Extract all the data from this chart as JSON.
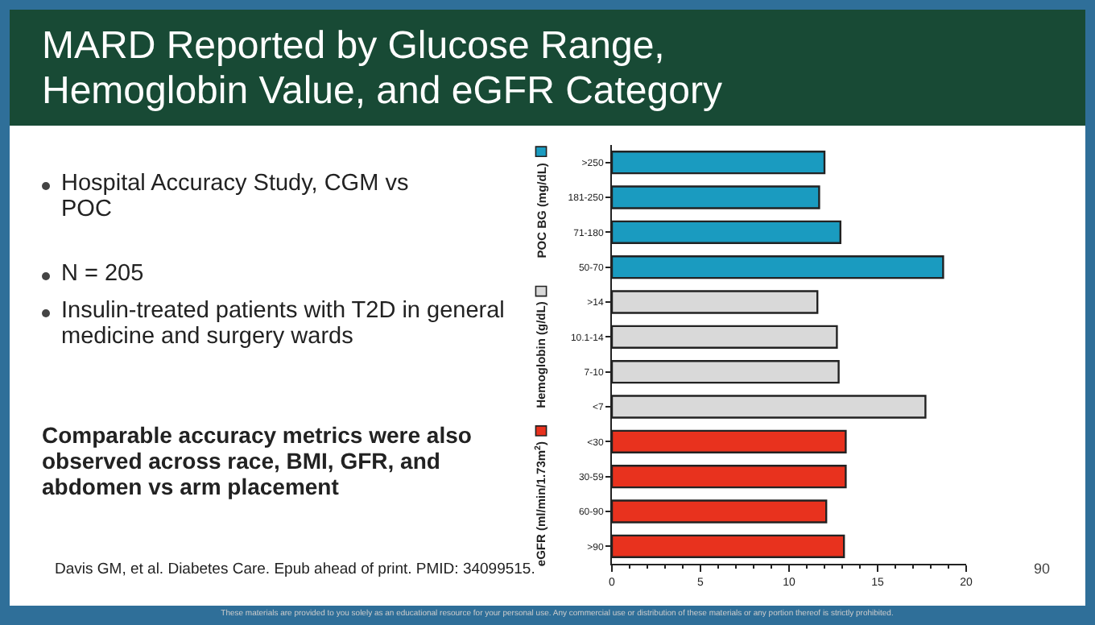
{
  "chart_data": {
    "type": "bar",
    "orientation": "horizontal",
    "title": "MARD Reported by Glucose Range, Hemoglobin Value, and eGFR Category",
    "categories": [
      ">250",
      "181-250",
      "71-180",
      "50-70",
      ">14",
      "10.1-14",
      "7-10",
      "<7",
      "<30",
      "30-59",
      "60-90",
      ">90"
    ],
    "series": [
      {
        "name": "POC BG (mg/dL)",
        "color": "#1a9bc0",
        "values": [
          12.0,
          11.7,
          12.9,
          18.7,
          null,
          null,
          null,
          null,
          null,
          null,
          null,
          null
        ]
      },
      {
        "name": "Hemoglobin (g/dL)",
        "color": "#d9d9d9",
        "values": [
          null,
          null,
          null,
          null,
          11.6,
          12.7,
          12.8,
          17.7,
          null,
          null,
          null,
          null
        ]
      },
      {
        "name": "eGFR (ml/min/1.73m$^{2}$)",
        "color": "#e8321e",
        "values": [
          null,
          null,
          null,
          null,
          null,
          null,
          null,
          null,
          13.2,
          13.2,
          12.1,
          13.1
        ]
      }
    ],
    "xlim": [
      0,
      20
    ],
    "xticks": [
      0,
      5,
      10,
      15,
      20
    ],
    "grid": false,
    "legend": "left",
    "annotations": [
      "Hospital Accuracy Study, CGM vs POC",
      "N = 205",
      "Insulin-treated patients with T2D in general medicine and surgery wards",
      "Comparable accuracy metrics were also observed across race, BMI, GFR, and abdomen vs arm placement",
      "Davis GM, et al. Diabetes Care. Epub ahead of print. PMID: 34099515.",
      "90",
      "These materials are provided to you solely as an educational resource for your personal use. Any commercial use or distribution of these materials or any portion thereof is strictly prohibited."
    ]
  }
}
